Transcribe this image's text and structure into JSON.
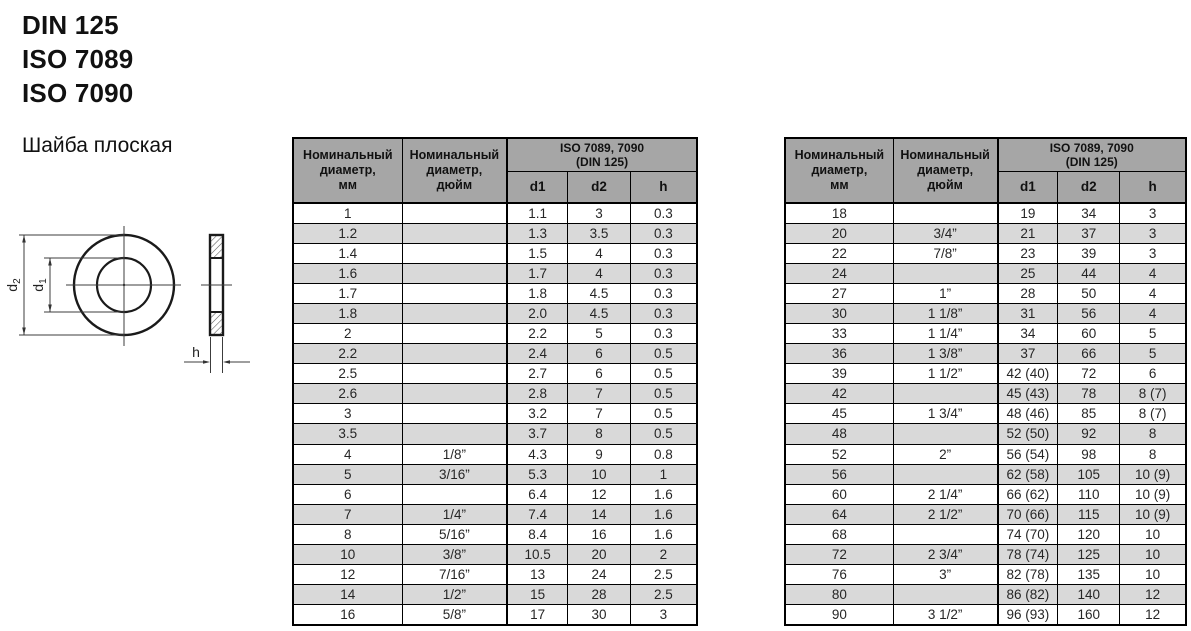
{
  "page": {
    "titles": [
      "DIN 125",
      "ISO 7089",
      "ISO 7090"
    ],
    "subtitle": "Шайба плоская"
  },
  "colors": {
    "header_bg": "#a6a6a6",
    "alt_row_bg": "#d9d9d9",
    "border": "#000000"
  },
  "drawing": {
    "labels": {
      "d": "d",
      "d1_sub": "1",
      "d2_sub": "2",
      "h": "h"
    }
  },
  "table_header": {
    "nominal_mm": "Номинальный\nдиаметр,\nмм",
    "nominal_inch": "Номинальный\nдиаметр,\nдюйм",
    "group": "ISO 7089, 7090\n(DIN 125)",
    "d1": "d1",
    "d2": "d2",
    "h": "h"
  },
  "left_table": {
    "rows": [
      [
        "1",
        "",
        "1.1",
        "3",
        "0.3"
      ],
      [
        "1.2",
        "",
        "1.3",
        "3.5",
        "0.3"
      ],
      [
        "1.4",
        "",
        "1.5",
        "4",
        "0.3"
      ],
      [
        "1.6",
        "",
        "1.7",
        "4",
        "0.3"
      ],
      [
        "1.7",
        "",
        "1.8",
        "4.5",
        "0.3"
      ],
      [
        "1.8",
        "",
        "2.0",
        "4.5",
        "0.3"
      ],
      [
        "2",
        "",
        "2.2",
        "5",
        "0.3"
      ],
      [
        "2.2",
        "",
        "2.4",
        "6",
        "0.5"
      ],
      [
        "2.5",
        "",
        "2.7",
        "6",
        "0.5"
      ],
      [
        "2.6",
        "",
        "2.8",
        "7",
        "0.5"
      ],
      [
        "3",
        "",
        "3.2",
        "7",
        "0.5"
      ],
      [
        "3.5",
        "",
        "3.7",
        "8",
        "0.5"
      ],
      [
        "4",
        "1/8”",
        "4.3",
        "9",
        "0.8"
      ],
      [
        "5",
        "3/16”",
        "5.3",
        "10",
        "1"
      ],
      [
        "6",
        "",
        "6.4",
        "12",
        "1.6"
      ],
      [
        "7",
        "1/4”",
        "7.4",
        "14",
        "1.6"
      ],
      [
        "8",
        "5/16”",
        "8.4",
        "16",
        "1.6"
      ],
      [
        "10",
        "3/8”",
        "10.5",
        "20",
        "2"
      ],
      [
        "12",
        "7/16”",
        "13",
        "24",
        "2.5"
      ],
      [
        "14",
        "1/2”",
        "15",
        "28",
        "2.5"
      ],
      [
        "16",
        "5/8”",
        "17",
        "30",
        "3"
      ]
    ]
  },
  "right_table": {
    "rows": [
      [
        "18",
        "",
        "19",
        "34",
        "3"
      ],
      [
        "20",
        "3/4”",
        "21",
        "37",
        "3"
      ],
      [
        "22",
        "7/8”",
        "23",
        "39",
        "3"
      ],
      [
        "24",
        "",
        "25",
        "44",
        "4"
      ],
      [
        "27",
        "1”",
        "28",
        "50",
        "4"
      ],
      [
        "30",
        "1 1/8”",
        "31",
        "56",
        "4"
      ],
      [
        "33",
        "1 1/4”",
        "34",
        "60",
        "5"
      ],
      [
        "36",
        "1 3/8”",
        "37",
        "66",
        "5"
      ],
      [
        "39",
        "1 1/2”",
        "42 (40)",
        "72",
        "6"
      ],
      [
        "42",
        "",
        "45 (43)",
        "78",
        "8 (7)"
      ],
      [
        "45",
        "1 3/4”",
        "48 (46)",
        "85",
        "8 (7)"
      ],
      [
        "48",
        "",
        "52 (50)",
        "92",
        "8"
      ],
      [
        "52",
        "2”",
        "56 (54)",
        "98",
        "8"
      ],
      [
        "56",
        "",
        "62 (58)",
        "105",
        "10 (9)"
      ],
      [
        "60",
        "2 1/4”",
        "66 (62)",
        "110",
        "10 (9)"
      ],
      [
        "64",
        "2 1/2”",
        "70 (66)",
        "115",
        "10 (9)"
      ],
      [
        "68",
        "",
        "74 (70)",
        "120",
        "10"
      ],
      [
        "72",
        "2 3/4”",
        "78 (74)",
        "125",
        "10"
      ],
      [
        "76",
        "3”",
        "82 (78)",
        "135",
        "10"
      ],
      [
        "80",
        "",
        "86 (82)",
        "140",
        "12"
      ],
      [
        "90",
        "3 1/2”",
        "96 (93)",
        "160",
        "12"
      ]
    ]
  }
}
